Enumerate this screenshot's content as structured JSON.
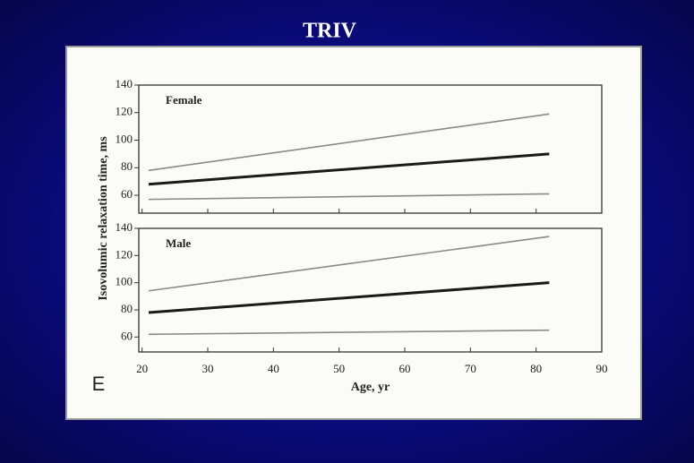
{
  "title": "TRIV",
  "panel_letter": "E",
  "ylabel": "Isovolumic relaxation time, ms",
  "chart_data": [
    {
      "type": "line",
      "label": "Female",
      "x": [
        21,
        82
      ],
      "series": [
        {
          "color": "#8a8a8a",
          "width": 1.6,
          "values": [
            78,
            119
          ]
        },
        {
          "color": "#1a1a1a",
          "width": 3,
          "values": [
            68,
            90
          ]
        },
        {
          "color": "#8a8a8a",
          "width": 1.6,
          "values": [
            57,
            61
          ]
        }
      ],
      "xlim": [
        19.5,
        90
      ],
      "ylim": [
        47,
        140
      ],
      "yticks": [
        60,
        80,
        100,
        120,
        140
      ]
    },
    {
      "type": "line",
      "label": "Male",
      "x": [
        21,
        82
      ],
      "series": [
        {
          "color": "#8a8a8a",
          "width": 1.6,
          "values": [
            94,
            134
          ]
        },
        {
          "color": "#1a1a1a",
          "width": 3,
          "values": [
            78,
            100
          ]
        },
        {
          "color": "#8a8a8a",
          "width": 1.6,
          "values": [
            62,
            65
          ]
        }
      ],
      "xlim": [
        19.5,
        90
      ],
      "ylim": [
        49,
        140
      ],
      "yticks": [
        60,
        80,
        100,
        120,
        140
      ],
      "xticks": [
        20,
        30,
        40,
        50,
        60,
        70,
        80,
        90
      ],
      "xlabel": "Age, yr"
    }
  ]
}
